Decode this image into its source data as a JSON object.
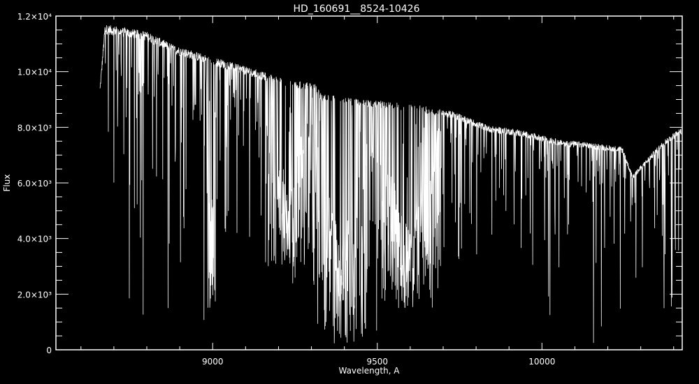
{
  "chart_data": {
    "type": "line",
    "title": "HD_160691__8524-10426",
    "xlabel": "Wavelength, A",
    "ylabel": "Flux",
    "xlim": [
      8524,
      10426
    ],
    "ylim": [
      0,
      12000
    ],
    "x_ticks": [
      {
        "value": 9000,
        "label": "9000"
      },
      {
        "value": 9500,
        "label": "9500"
      },
      {
        "value": 10000,
        "label": "10000"
      }
    ],
    "y_ticks": [
      {
        "value": 0,
        "label": "0"
      },
      {
        "value": 2000,
        "label": "2.0×10³"
      },
      {
        "value": 4000,
        "label": "4.0×10³"
      },
      {
        "value": 6000,
        "label": "6.0×10³"
      },
      {
        "value": 8000,
        "label": "8.0×10³"
      },
      {
        "value": 10000,
        "label": "1.0×10⁴"
      },
      {
        "value": 12000,
        "label": "1.2×10⁴"
      }
    ],
    "x_minor_step": 100,
    "y_minor_step": 500,
    "grid": false,
    "series": [
      {
        "color": "#ffffff",
        "continuum": [
          [
            8658,
            9500
          ],
          [
            8673,
            11700
          ],
          [
            8800,
            11450
          ],
          [
            8885,
            10950
          ],
          [
            8991,
            10570
          ],
          [
            9097,
            10200
          ],
          [
            9203,
            9800
          ],
          [
            9310,
            9560
          ],
          [
            9331,
            9200
          ],
          [
            9416,
            9060
          ],
          [
            9522,
            8940
          ],
          [
            9628,
            8800
          ],
          [
            9734,
            8560
          ],
          [
            9840,
            8060
          ],
          [
            9925,
            7930
          ],
          [
            10053,
            7560
          ],
          [
            10159,
            7430
          ],
          [
            10244,
            7300
          ],
          [
            10275,
            6300
          ],
          [
            10371,
            7560
          ],
          [
            10424,
            8000
          ]
        ],
        "absorption_bands": [
          {
            "from": 8980,
            "to": 9010,
            "min_flux": 1500
          },
          {
            "from": 9300,
            "to": 9480,
            "min_flux": 200
          },
          {
            "from": 9480,
            "to": 9700,
            "min_flux": 1500
          },
          {
            "from": 9160,
            "to": 9300,
            "min_flux": 3000
          }
        ]
      }
    ]
  }
}
